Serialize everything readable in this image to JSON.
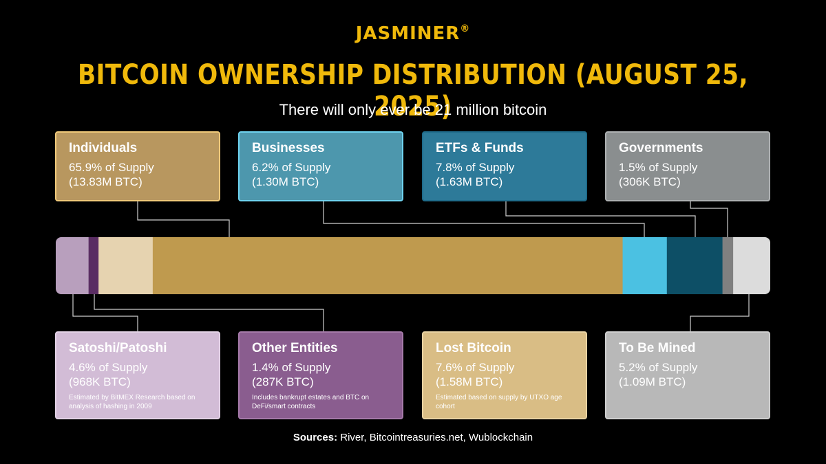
{
  "logo": {
    "text": "JASMINER",
    "reg": "®"
  },
  "title": "BITCOIN OWNERSHIP DISTRIBUTION (AUGUST 25, 2025)",
  "subtitle": "There will only ever be 21 million bitcoin",
  "colors": {
    "accent": "#f0b90b",
    "individuals": "#bf9a4e",
    "businesses": "#4bc1e2",
    "etfs": "#0d4f66",
    "governments": "#808080",
    "satoshi": "#b89fbd",
    "other": "#5a2d63",
    "lost": "#e6d3b0",
    "to_be_mined": "#dcdcdc"
  },
  "chart_data": {
    "type": "stacked-bar",
    "total": "21 million bitcoin",
    "segments": [
      {
        "key": "satoshi",
        "name": "Satoshi/Patoshi",
        "percent": 4.6,
        "btc": "968K BTC"
      },
      {
        "key": "other",
        "name": "Other Entities",
        "percent": 1.4,
        "btc": "287K BTC"
      },
      {
        "key": "lost",
        "name": "Lost Bitcoin",
        "percent": 7.6,
        "btc": "1.58M BTC"
      },
      {
        "key": "individuals",
        "name": "Individuals",
        "percent": 65.9,
        "btc": "13.83M BTC"
      },
      {
        "key": "businesses",
        "name": "Businesses",
        "percent": 6.2,
        "btc": "1.30M BTC"
      },
      {
        "key": "etfs",
        "name": "ETFs & Funds",
        "percent": 7.8,
        "btc": "1.63M BTC"
      },
      {
        "key": "governments",
        "name": "Governments",
        "percent": 1.5,
        "btc": "306K BTC"
      },
      {
        "key": "to_be_mined",
        "name": "To Be Mined",
        "percent": 5.2,
        "btc": "1.09M BTC"
      }
    ]
  },
  "cards": {
    "individuals": {
      "name": "Individuals",
      "pct": "65.9% of Supply",
      "btc": "(13.83M BTC)"
    },
    "businesses": {
      "name": "Businesses",
      "pct": "6.2% of Supply",
      "btc": "(1.30M BTC)"
    },
    "etfs": {
      "name": "ETFs & Funds",
      "pct": "7.8% of Supply",
      "btc": "(1.63M BTC)"
    },
    "governments": {
      "name": "Governments",
      "pct": "1.5% of Supply",
      "btc": "(306K BTC)"
    },
    "satoshi": {
      "name": "Satoshi/Patoshi",
      "pct": "4.6% of Supply",
      "btc": "(968K BTC)",
      "note": "Estimated by BitMEX Research based on analysis of hashing in 2009"
    },
    "other": {
      "name": "Other Entities",
      "pct": "1.4% of Supply",
      "btc": "(287K BTC)",
      "note": "Includes bankrupt estates and BTC on DeFi/smart contracts"
    },
    "lost": {
      "name": "Lost Bitcoin",
      "pct": "7.6% of Supply",
      "btc": "(1.58M BTC)",
      "note": "Estimated based on supply by UTXO age cohort"
    },
    "to_be_mined": {
      "name": "To Be Mined",
      "pct": "5.2% of Supply",
      "btc": "(1.09M BTC)"
    }
  },
  "sources": {
    "label": "Sources:",
    "text": " River, Bitcointreasuries.net, Wublockchain"
  }
}
